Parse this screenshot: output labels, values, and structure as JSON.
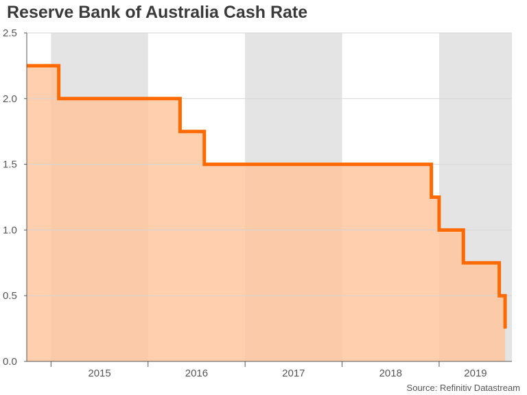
{
  "colors": {
    "band": "#e4e4e4",
    "area": "#ffc49c",
    "line": "#ff6a00",
    "grid": "#d6d6d6",
    "axis": "#555555"
  },
  "chart_data": {
    "type": "area",
    "title": "Reserve Bank of Australia Cash Rate",
    "source": "Source: Refinitiv Datastream",
    "xlabel": "",
    "ylabel": "",
    "ylim": [
      0,
      2.5
    ],
    "xlim": [
      2014.75,
      2019.75
    ],
    "y_ticks": [
      "0.0",
      "0.5",
      "1.0",
      "1.5",
      "2.0",
      "2.5"
    ],
    "year_labels": [
      "2015",
      "2016",
      "2017",
      "2018",
      "2019"
    ],
    "grid": true,
    "shaded_years": [
      2015,
      2017,
      2019
    ],
    "series": [
      {
        "x": [
          2014.75,
          2015.08,
          2015.08,
          2016.33,
          2016.33,
          2016.58,
          2016.58,
          2018.92,
          2018.92,
          2019.0,
          2019.0,
          2019.25,
          2019.25,
          2019.62,
          2019.62,
          2019.68,
          2019.68
        ],
        "values": [
          2.25,
          2.25,
          2.0,
          2.0,
          1.75,
          1.75,
          1.5,
          1.5,
          1.25,
          1.25,
          1.0,
          1.0,
          0.75,
          0.75,
          0.5,
          0.5,
          0.25
        ]
      }
    ]
  }
}
